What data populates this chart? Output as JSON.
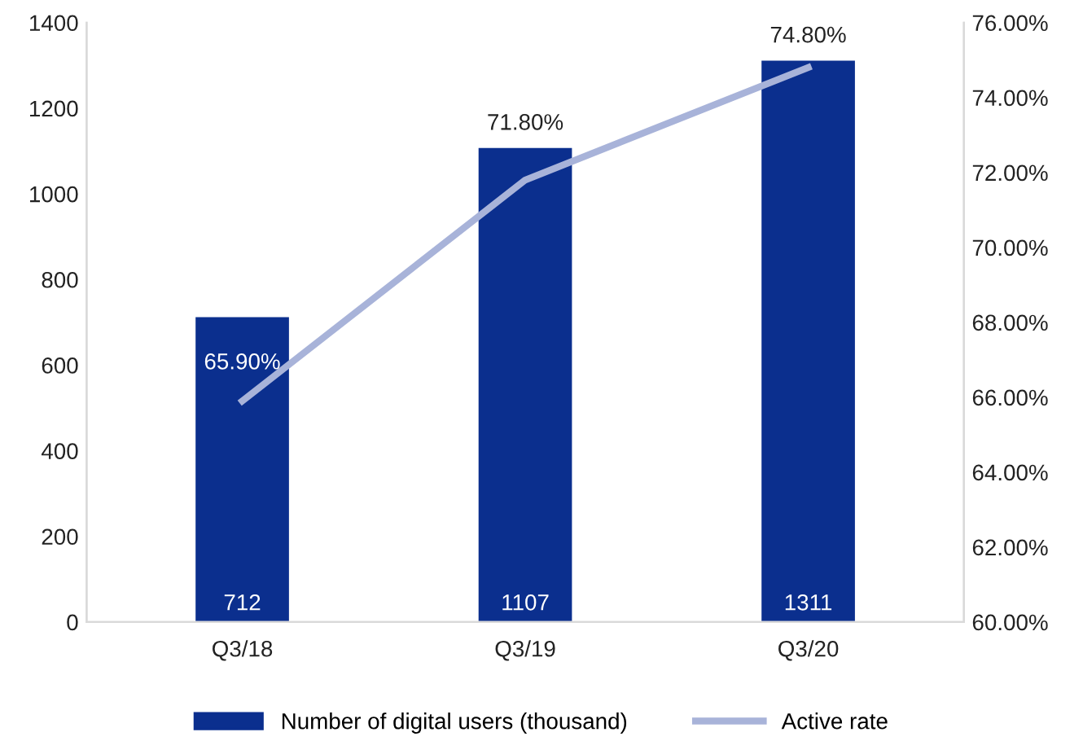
{
  "chart_data": {
    "type": "bar",
    "categories": [
      "Q3/18",
      "Q3/19",
      "Q3/20"
    ],
    "series": [
      {
        "name": "Number of digital users (thousand)",
        "color": "#0b2f8e",
        "values": [
          712,
          1107,
          1311
        ],
        "value_labels": [
          "712",
          "1107",
          "1311"
        ]
      },
      {
        "name": "Active rate",
        "type": "line",
        "axis": "y2",
        "color": "#a8b3d9",
        "values": [
          65.9,
          71.8,
          74.8
        ],
        "value_labels": [
          "65.90%",
          "71.80%",
          "74.80%"
        ]
      }
    ],
    "ylim": [
      0,
      1400
    ],
    "yticks": [
      0,
      200,
      400,
      600,
      800,
      1000,
      1200,
      1400
    ],
    "y2lim": [
      60,
      76
    ],
    "y2ticks": [
      {
        "value": 60,
        "label": "60.00%"
      },
      {
        "value": 62,
        "label": "62.00%"
      },
      {
        "value": 64,
        "label": "64.00%"
      },
      {
        "value": 66,
        "label": "66.00%"
      },
      {
        "value": 68,
        "label": "68.00%"
      },
      {
        "value": 70,
        "label": "70.00%"
      },
      {
        "value": 72,
        "label": "72.00%"
      },
      {
        "value": 74,
        "label": "74.00%"
      },
      {
        "value": 76,
        "label": "76.00%"
      }
    ],
    "grid": false,
    "legend": "bottom",
    "marker": "none",
    "line_style": "solid"
  }
}
